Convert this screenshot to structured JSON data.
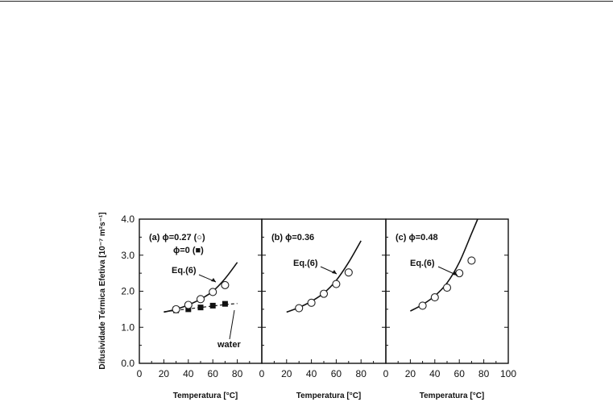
{
  "chart_data": {
    "type": "scatter",
    "ylabel": "Difusividade Térmica Efetiva [10⁻⁷ m²s⁻¹]",
    "ylim": [
      0,
      4.0
    ],
    "yticks": [
      "0.0",
      "1.0",
      "2.0",
      "3.0",
      "4.0"
    ],
    "y_ticks_values": [
      0,
      1,
      2,
      3,
      4
    ],
    "grid": false,
    "panels": [
      {
        "label_line1": "(a) ϕ=0.27 (○)",
        "label_line2": "ϕ=0 (■)",
        "xlabel": "Temperatura [°C]",
        "xlim": [
          0,
          100
        ],
        "xticks": [
          "0",
          "20",
          "40",
          "60",
          "80"
        ],
        "x_tick_values": [
          0,
          20,
          40,
          60,
          80
        ],
        "curve_label": "Eq.(6)",
        "curve_data_name": "eq6-curve-a",
        "curve": {
          "x": [
            20,
            30,
            40,
            50,
            60,
            70,
            80
          ],
          "y": [
            1.42,
            1.5,
            1.62,
            1.78,
            2.0,
            2.35,
            2.8
          ]
        },
        "open_points": {
          "name": "ϕ=0.27",
          "x": [
            30,
            40,
            50,
            60,
            70
          ],
          "y": [
            1.5,
            1.62,
            1.78,
            1.98,
            2.17
          ]
        },
        "filled_points": {
          "name": "ϕ=0",
          "x": [
            30,
            40,
            50,
            60,
            70
          ],
          "y": [
            1.47,
            1.5,
            1.55,
            1.6,
            1.65
          ]
        },
        "water_line": {
          "x": [
            20,
            30,
            40,
            50,
            60,
            70,
            80
          ],
          "y": [
            1.43,
            1.47,
            1.51,
            1.55,
            1.59,
            1.63,
            1.66
          ]
        },
        "water_label": "water"
      },
      {
        "label_line1": "(b) ϕ=0.36",
        "xlabel": "Temperatura [°C]",
        "xlim": [
          0,
          100
        ],
        "xticks": [
          "0",
          "20",
          "40",
          "60",
          "80"
        ],
        "x_tick_values": [
          0,
          20,
          40,
          60,
          80
        ],
        "curve_label": "Eq.(6)",
        "curve": {
          "x": [
            20,
            30,
            40,
            50,
            60,
            70,
            80
          ],
          "y": [
            1.42,
            1.55,
            1.72,
            1.95,
            2.3,
            2.8,
            3.4
          ]
        },
        "open_points": {
          "name": "ϕ=0.36",
          "x": [
            30,
            40,
            50,
            60,
            70
          ],
          "y": [
            1.53,
            1.68,
            1.93,
            2.2,
            2.52
          ]
        }
      },
      {
        "label_line1": "(c) ϕ=0.48",
        "xlabel": "Temperatura [°C]",
        "xlim": [
          0,
          100
        ],
        "xticks": [
          "0",
          "20",
          "40",
          "60",
          "80",
          "100"
        ],
        "x_tick_values": [
          0,
          20,
          40,
          60,
          80,
          100
        ],
        "curve_label": "Eq.(6)",
        "curve": {
          "x": [
            20,
            30,
            40,
            50,
            60,
            70,
            75
          ],
          "y": [
            1.45,
            1.63,
            1.87,
            2.23,
            2.8,
            3.6,
            4.0
          ]
        },
        "open_points": {
          "name": "ϕ=0.48",
          "x": [
            30,
            40,
            50,
            60,
            70
          ],
          "y": [
            1.6,
            1.83,
            2.1,
            2.5,
            2.85
          ]
        }
      }
    ]
  }
}
